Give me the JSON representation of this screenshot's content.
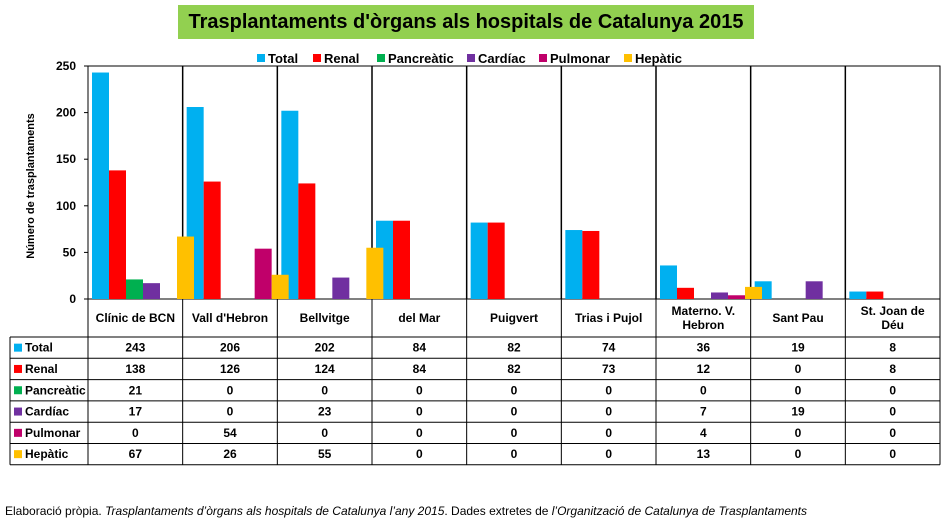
{
  "chart_data": {
    "type": "bar",
    "title": "Trasplantaments d'òrgans als hospitals de Catalunya 2015",
    "ylabel": "Número de trasplantaments",
    "ylim": [
      0,
      250
    ],
    "yticks": [
      0,
      50,
      100,
      150,
      200,
      250
    ],
    "legend_position": "top",
    "categories": [
      "Clínic de BCN",
      "Vall d'Hebron",
      "Bellvitge",
      "del Mar",
      "Puigvert",
      "Trias i Pujol",
      "Materno. V. Hebron",
      "Sant Pau",
      "St. Joan de Déu"
    ],
    "series": [
      {
        "name": "Total",
        "color": "#00b0f0",
        "values": [
          243,
          206,
          202,
          84,
          82,
          74,
          36,
          19,
          8
        ]
      },
      {
        "name": "Renal",
        "color": "#ff0000",
        "values": [
          138,
          126,
          124,
          84,
          82,
          73,
          12,
          0,
          8
        ]
      },
      {
        "name": "Pancreàtic",
        "color": "#00b050",
        "values": [
          21,
          0,
          0,
          0,
          0,
          0,
          0,
          0,
          0
        ]
      },
      {
        "name": "Cardíac",
        "color": "#7030a0",
        "values": [
          17,
          0,
          23,
          0,
          0,
          0,
          7,
          19,
          0
        ]
      },
      {
        "name": "Pulmonar",
        "color": "#c0006a",
        "values": [
          0,
          54,
          0,
          0,
          0,
          0,
          4,
          0,
          0
        ]
      },
      {
        "name": "Hepàtic",
        "color": "#ffc000",
        "values": [
          67,
          26,
          55,
          0,
          0,
          0,
          13,
          0,
          0
        ]
      }
    ]
  },
  "caption": {
    "prefix": "Elaboració pròpia. ",
    "title_italic": "Trasplantaments d’òrgans als hospitals de Catalunya l’any 2015",
    "middle": ". Dades extretes de ",
    "source_italic": "l’Organització de Catalunya de Trasplantaments"
  }
}
